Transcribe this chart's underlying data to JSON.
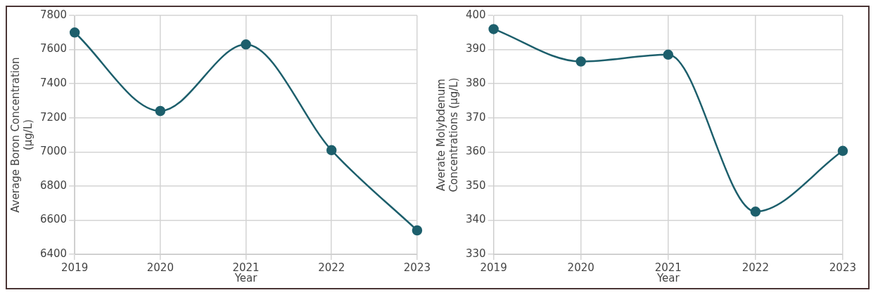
{
  "chart_data": [
    {
      "type": "line",
      "categories": [
        "2019",
        "2020",
        "2021",
        "2022",
        "2023"
      ],
      "xlabel": "Year",
      "ylabel": "Average Boron Concentration (µg/L)",
      "series": [
        {
          "color": "#1d5f6c",
          "values": [
            7700,
            7240,
            7630,
            7010,
            6540
          ]
        }
      ],
      "ylim": [
        6400,
        7800
      ],
      "yticks": [
        6400,
        6600,
        6800,
        7000,
        7200,
        7400,
        7600,
        7800
      ],
      "grid": true,
      "legend": false,
      "marker": "circle"
    },
    {
      "type": "line",
      "categories": [
        "2019",
        "2020",
        "2021",
        "2022",
        "2023"
      ],
      "xlabel": "Year",
      "ylabel": "Averate Molybdenum Concentrations (µg/L)",
      "series": [
        {
          "color": "#1d5f6c",
          "values": [
            396,
            386.5,
            388.5,
            342.5,
            360.3
          ]
        }
      ],
      "ylim": [
        330,
        400
      ],
      "yticks": [
        330,
        340,
        350,
        360,
        370,
        380,
        390,
        400
      ],
      "grid": true,
      "legend": false,
      "marker": "circle"
    }
  ]
}
